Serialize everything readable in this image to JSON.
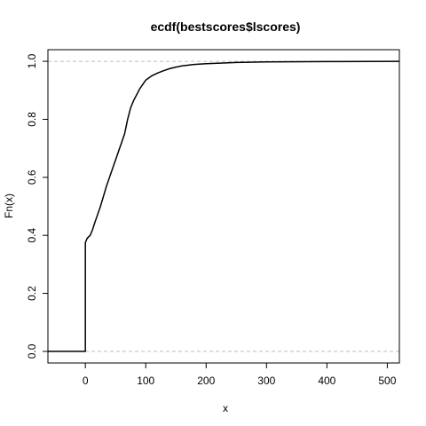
{
  "chart_data": {
    "type": "line",
    "title": "ecdf(bestscores$lscores)",
    "xlabel": "x",
    "ylabel": "Fn(x)",
    "xlim": [
      -62,
      520
    ],
    "ylim": [
      -0.04,
      1.04
    ],
    "x_ticks": [
      0,
      100,
      200,
      300,
      400,
      500
    ],
    "y_ticks": [
      0.0,
      0.2,
      0.4,
      0.6,
      0.8,
      1.0
    ],
    "x_tick_labels": [
      "0",
      "100",
      "200",
      "300",
      "400",
      "500"
    ],
    "y_tick_labels": [
      "0.0",
      "0.2",
      "0.4",
      "0.6",
      "0.8",
      "1.0"
    ],
    "reference_lines": [
      0,
      1
    ],
    "grid": false,
    "series": [
      {
        "x": [
          -62,
          0,
          0,
          3,
          8,
          12,
          15,
          20,
          25,
          30,
          35,
          40,
          45,
          50,
          55,
          60,
          65,
          70,
          75,
          80,
          85,
          90,
          95,
          100,
          110,
          120,
          130,
          140,
          150,
          160,
          180,
          200,
          250,
          300,
          400,
          520
        ],
        "y": [
          0,
          0,
          0.375,
          0.39,
          0.4,
          0.42,
          0.44,
          0.47,
          0.5,
          0.535,
          0.57,
          0.6,
          0.63,
          0.66,
          0.69,
          0.72,
          0.75,
          0.8,
          0.84,
          0.865,
          0.885,
          0.905,
          0.92,
          0.935,
          0.95,
          0.96,
          0.968,
          0.975,
          0.98,
          0.984,
          0.989,
          0.992,
          0.996,
          0.998,
          0.999,
          1.0
        ]
      }
    ]
  }
}
